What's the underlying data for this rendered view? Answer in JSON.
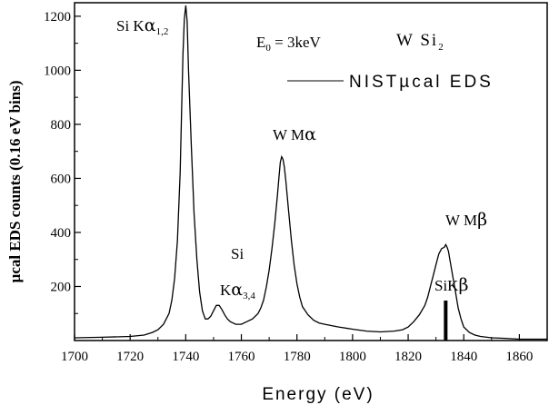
{
  "chart_data": {
    "type": "line",
    "title": "",
    "xlabel": "Energy (eV)",
    "ylabel": "µcal EDS counts (0.16 eV bins)",
    "xlim": [
      1700,
      1870
    ],
    "ylim": [
      0,
      1250
    ],
    "xticks": [
      1700,
      1720,
      1740,
      1760,
      1780,
      1800,
      1820,
      1840,
      1860
    ],
    "yticks": [
      200,
      400,
      600,
      800,
      1000,
      1200
    ],
    "grid": false,
    "legend": {
      "position": "top-right",
      "label": "NISTµcal EDS"
    },
    "series": [
      {
        "name": "NISTµcal EDS",
        "x": [
          1700,
          1710,
          1720,
          1725,
          1728,
          1730,
          1732,
          1734,
          1735,
          1736,
          1737,
          1738,
          1738.5,
          1739,
          1739.5,
          1740,
          1740.5,
          1741,
          1742,
          1743,
          1744,
          1745,
          1746,
          1747,
          1748,
          1749,
          1750,
          1751,
          1752,
          1753,
          1754,
          1755,
          1756,
          1758,
          1760,
          1762,
          1764,
          1766,
          1767,
          1768,
          1769,
          1770,
          1771,
          1772,
          1773,
          1773.5,
          1774,
          1774.5,
          1775,
          1775.5,
          1776,
          1777,
          1778,
          1779,
          1780,
          1781,
          1782,
          1784,
          1786,
          1788,
          1790,
          1795,
          1800,
          1805,
          1810,
          1815,
          1818,
          1820,
          1822,
          1824,
          1826,
          1827,
          1828,
          1829,
          1830,
          1831,
          1832,
          1833,
          1833.5,
          1834,
          1834.5,
          1835,
          1836,
          1837,
          1838,
          1839,
          1840,
          1842,
          1844,
          1846,
          1850,
          1855,
          1860,
          1865,
          1870
        ],
        "y": [
          10,
          12,
          15,
          20,
          30,
          40,
          60,
          100,
          150,
          230,
          370,
          620,
          850,
          1060,
          1190,
          1240,
          1180,
          1000,
          720,
          470,
          300,
          180,
          110,
          80,
          80,
          90,
          110,
          130,
          130,
          115,
          95,
          80,
          70,
          60,
          60,
          70,
          80,
          100,
          120,
          150,
          200,
          260,
          340,
          430,
          540,
          600,
          660,
          680,
          670,
          640,
          590,
          480,
          370,
          280,
          210,
          160,
          125,
          95,
          75,
          65,
          60,
          50,
          42,
          35,
          32,
          35,
          40,
          50,
          70,
          95,
          130,
          160,
          200,
          240,
          280,
          320,
          340,
          345,
          355,
          345,
          330,
          300,
          240,
          180,
          120,
          80,
          50,
          30,
          20,
          15,
          10,
          8,
          5,
          5,
          5
        ],
        "color": "#000000"
      }
    ],
    "annotations": {
      "si_ka12": {
        "main": "Si K",
        "greek": "α",
        "sub": "1,2"
      },
      "e0": {
        "main": "E",
        "sub": "0",
        "rest": " = 3keV"
      },
      "compound": {
        "main": "W Si",
        "sub": "2"
      },
      "w_ma": {
        "main": "W  M",
        "greek": "α"
      },
      "si_ka34_line1": "Si",
      "si_ka34": {
        "main": "K",
        "greek": "α",
        "sub": "3,4"
      },
      "w_mb": {
        "main": "W  M",
        "greek": "β"
      },
      "si_kb": {
        "main": "SiK",
        "greek": "β"
      }
    },
    "marker": {
      "x": 1833.5,
      "label": "SiKβ"
    }
  }
}
